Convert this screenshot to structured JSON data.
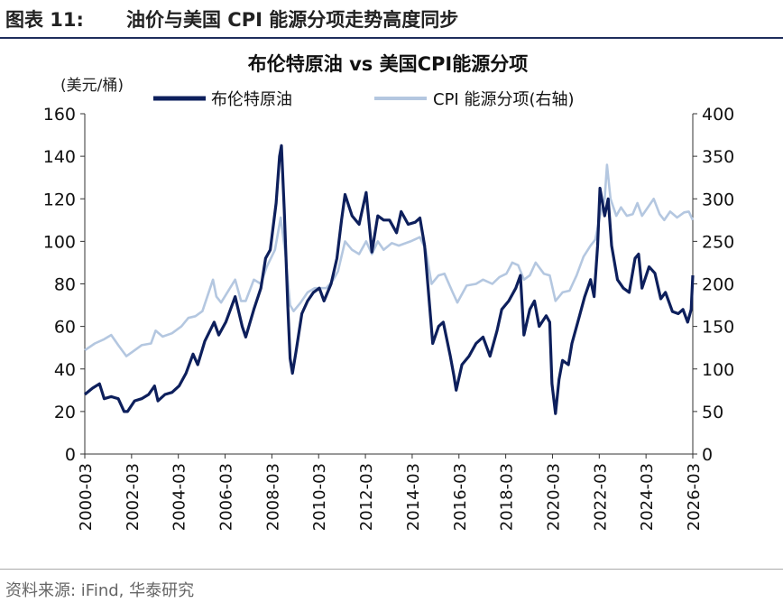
{
  "header": {
    "figure_number": "图表 11:",
    "caption": "油价与美国 CPI 能源分项走势高度同步"
  },
  "source_note": "资料来源: iFind, 华泰研究",
  "colors": {
    "brent": "#0d1f5c",
    "cpi": "#b4c7e0",
    "header_rule": "#1f2d5c"
  },
  "chart_data": {
    "type": "line",
    "title": "布伦特原油 vs 美国CPI能源分项",
    "ylabel_left": "(美元/桶)",
    "ylabel_right": "",
    "legend_position": "top",
    "grid": false,
    "x_range": [
      2000.17,
      2026.17
    ],
    "ylim_left": [
      0,
      160
    ],
    "ylim_right": [
      0,
      400
    ],
    "yticks_left": [
      0,
      20,
      40,
      60,
      80,
      100,
      120,
      140,
      160
    ],
    "yticks_right": [
      0,
      50,
      100,
      150,
      200,
      250,
      300,
      350,
      400
    ],
    "x_ticks": [
      {
        "label": "2000-03",
        "x": 2000.17
      },
      {
        "label": "2002-03",
        "x": 2002.17
      },
      {
        "label": "2004-03",
        "x": 2004.17
      },
      {
        "label": "2006-03",
        "x": 2006.17
      },
      {
        "label": "2008-03",
        "x": 2008.17
      },
      {
        "label": "2010-03",
        "x": 2010.17
      },
      {
        "label": "2012-03",
        "x": 2012.17
      },
      {
        "label": "2014-03",
        "x": 2014.17
      },
      {
        "label": "2016-03",
        "x": 2016.17
      },
      {
        "label": "2018-03",
        "x": 2018.17
      },
      {
        "label": "2020-03",
        "x": 2020.17
      },
      {
        "label": "2022-03",
        "x": 2022.17
      },
      {
        "label": "2024-03",
        "x": 2024.17
      },
      {
        "label": "2026-03",
        "x": 2026.17
      }
    ],
    "series": [
      {
        "name": "布伦特原油",
        "axis": "left",
        "points": [
          [
            2000.17,
            28
          ],
          [
            2000.5,
            31
          ],
          [
            2000.8,
            33
          ],
          [
            2001.0,
            26
          ],
          [
            2001.3,
            27
          ],
          [
            2001.6,
            26
          ],
          [
            2001.85,
            20
          ],
          [
            2002.0,
            20
          ],
          [
            2002.3,
            25
          ],
          [
            2002.6,
            26
          ],
          [
            2002.9,
            28
          ],
          [
            2003.15,
            32
          ],
          [
            2003.3,
            25
          ],
          [
            2003.6,
            28
          ],
          [
            2003.9,
            29
          ],
          [
            2004.2,
            32
          ],
          [
            2004.5,
            38
          ],
          [
            2004.8,
            47
          ],
          [
            2005.0,
            42
          ],
          [
            2005.3,
            53
          ],
          [
            2005.7,
            62
          ],
          [
            2005.9,
            56
          ],
          [
            2006.2,
            62
          ],
          [
            2006.6,
            74
          ],
          [
            2006.9,
            60
          ],
          [
            2007.05,
            55
          ],
          [
            2007.4,
            68
          ],
          [
            2007.7,
            78
          ],
          [
            2007.9,
            92
          ],
          [
            2008.1,
            96
          ],
          [
            2008.35,
            118
          ],
          [
            2008.5,
            140
          ],
          [
            2008.58,
            145
          ],
          [
            2008.7,
            115
          ],
          [
            2008.85,
            70
          ],
          [
            2008.95,
            45
          ],
          [
            2009.05,
            38
          ],
          [
            2009.2,
            48
          ],
          [
            2009.45,
            66
          ],
          [
            2009.7,
            72
          ],
          [
            2009.95,
            76
          ],
          [
            2010.2,
            78
          ],
          [
            2010.4,
            72
          ],
          [
            2010.7,
            80
          ],
          [
            2010.95,
            92
          ],
          [
            2011.15,
            110
          ],
          [
            2011.3,
            122
          ],
          [
            2011.6,
            112
          ],
          [
            2011.9,
            108
          ],
          [
            2012.2,
            123
          ],
          [
            2012.45,
            95
          ],
          [
            2012.7,
            112
          ],
          [
            2012.95,
            110
          ],
          [
            2013.2,
            110
          ],
          [
            2013.5,
            104
          ],
          [
            2013.7,
            114
          ],
          [
            2014.0,
            108
          ],
          [
            2014.3,
            109
          ],
          [
            2014.5,
            111
          ],
          [
            2014.7,
            98
          ],
          [
            2014.9,
            72
          ],
          [
            2015.05,
            52
          ],
          [
            2015.3,
            60
          ],
          [
            2015.5,
            62
          ],
          [
            2015.8,
            46
          ],
          [
            2015.95,
            37
          ],
          [
            2016.05,
            30
          ],
          [
            2016.3,
            42
          ],
          [
            2016.6,
            46
          ],
          [
            2016.9,
            52
          ],
          [
            2017.2,
            55
          ],
          [
            2017.5,
            46
          ],
          [
            2017.8,
            58
          ],
          [
            2018.0,
            68
          ],
          [
            2018.3,
            72
          ],
          [
            2018.6,
            78
          ],
          [
            2018.8,
            84
          ],
          [
            2018.95,
            56
          ],
          [
            2019.2,
            68
          ],
          [
            2019.4,
            72
          ],
          [
            2019.6,
            60
          ],
          [
            2019.9,
            65
          ],
          [
            2020.05,
            62
          ],
          [
            2020.15,
            33
          ],
          [
            2020.3,
            19
          ],
          [
            2020.45,
            35
          ],
          [
            2020.6,
            44
          ],
          [
            2020.85,
            42
          ],
          [
            2021.0,
            52
          ],
          [
            2021.3,
            64
          ],
          [
            2021.55,
            74
          ],
          [
            2021.8,
            82
          ],
          [
            2021.95,
            74
          ],
          [
            2022.1,
            98
          ],
          [
            2022.2,
            125
          ],
          [
            2022.4,
            112
          ],
          [
            2022.55,
            120
          ],
          [
            2022.7,
            98
          ],
          [
            2022.95,
            82
          ],
          [
            2023.2,
            78
          ],
          [
            2023.45,
            76
          ],
          [
            2023.7,
            92
          ],
          [
            2023.85,
            94
          ],
          [
            2024.0,
            78
          ],
          [
            2024.3,
            88
          ],
          [
            2024.55,
            85
          ],
          [
            2024.8,
            73
          ],
          [
            2025.0,
            76
          ],
          [
            2025.3,
            67
          ],
          [
            2025.55,
            66
          ],
          [
            2025.75,
            68
          ],
          [
            2025.95,
            62
          ],
          [
            2026.1,
            68
          ],
          [
            2026.17,
            84
          ]
        ]
      },
      {
        "name": "CPI 能源分项(右轴)",
        "axis": "right",
        "points": [
          [
            2000.17,
            122
          ],
          [
            2000.6,
            130
          ],
          [
            2001.0,
            135
          ],
          [
            2001.3,
            140
          ],
          [
            2001.6,
            128
          ],
          [
            2001.95,
            115
          ],
          [
            2002.2,
            120
          ],
          [
            2002.6,
            128
          ],
          [
            2003.0,
            130
          ],
          [
            2003.2,
            145
          ],
          [
            2003.5,
            138
          ],
          [
            2003.9,
            142
          ],
          [
            2004.3,
            150
          ],
          [
            2004.6,
            160
          ],
          [
            2004.9,
            162
          ],
          [
            2005.2,
            168
          ],
          [
            2005.65,
            205
          ],
          [
            2005.8,
            185
          ],
          [
            2006.0,
            178
          ],
          [
            2006.6,
            205
          ],
          [
            2006.85,
            180
          ],
          [
            2007.05,
            180
          ],
          [
            2007.4,
            205
          ],
          [
            2007.7,
            200
          ],
          [
            2007.95,
            220
          ],
          [
            2008.3,
            240
          ],
          [
            2008.55,
            278
          ],
          [
            2008.75,
            235
          ],
          [
            2008.95,
            175
          ],
          [
            2009.1,
            168
          ],
          [
            2009.4,
            178
          ],
          [
            2009.7,
            190
          ],
          [
            2010.0,
            195
          ],
          [
            2010.5,
            195
          ],
          [
            2010.8,
            205
          ],
          [
            2011.0,
            215
          ],
          [
            2011.3,
            250
          ],
          [
            2011.6,
            240
          ],
          [
            2011.9,
            235
          ],
          [
            2012.2,
            250
          ],
          [
            2012.45,
            235
          ],
          [
            2012.7,
            250
          ],
          [
            2012.95,
            240
          ],
          [
            2013.3,
            248
          ],
          [
            2013.6,
            245
          ],
          [
            2014.1,
            250
          ],
          [
            2014.5,
            255
          ],
          [
            2014.75,
            240
          ],
          [
            2015.0,
            200
          ],
          [
            2015.3,
            210
          ],
          [
            2015.55,
            212
          ],
          [
            2015.9,
            190
          ],
          [
            2016.1,
            178
          ],
          [
            2016.5,
            198
          ],
          [
            2016.9,
            200
          ],
          [
            2017.2,
            205
          ],
          [
            2017.6,
            200
          ],
          [
            2017.9,
            208
          ],
          [
            2018.2,
            212
          ],
          [
            2018.45,
            225
          ],
          [
            2018.7,
            222
          ],
          [
            2018.95,
            205
          ],
          [
            2019.2,
            210
          ],
          [
            2019.45,
            225
          ],
          [
            2019.8,
            212
          ],
          [
            2020.05,
            210
          ],
          [
            2020.3,
            180
          ],
          [
            2020.6,
            190
          ],
          [
            2020.9,
            192
          ],
          [
            2021.2,
            210
          ],
          [
            2021.5,
            232
          ],
          [
            2021.8,
            245
          ],
          [
            2022.0,
            252
          ],
          [
            2022.2,
            280
          ],
          [
            2022.4,
            300
          ],
          [
            2022.5,
            340
          ],
          [
            2022.65,
            300
          ],
          [
            2022.9,
            280
          ],
          [
            2023.1,
            290
          ],
          [
            2023.35,
            280
          ],
          [
            2023.6,
            282
          ],
          [
            2023.8,
            295
          ],
          [
            2024.0,
            280
          ],
          [
            2024.25,
            290
          ],
          [
            2024.5,
            300
          ],
          [
            2024.75,
            282
          ],
          [
            2024.95,
            275
          ],
          [
            2025.2,
            285
          ],
          [
            2025.5,
            278
          ],
          [
            2025.8,
            284
          ],
          [
            2026.0,
            285
          ],
          [
            2026.17,
            275
          ]
        ]
      }
    ]
  }
}
